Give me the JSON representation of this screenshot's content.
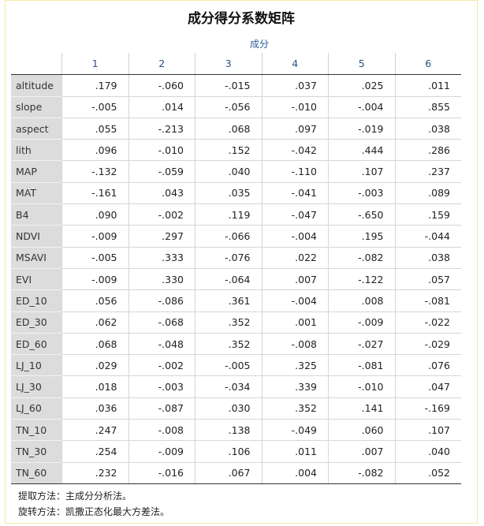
{
  "title": "成分得分系数矩阵",
  "group_header": "成分",
  "columns": [
    "1",
    "2",
    "3",
    "4",
    "5",
    "6"
  ],
  "rows": [
    {
      "label": "altitude",
      "values": [
        ".179",
        "-.060",
        "-.015",
        ".037",
        ".025",
        ".011"
      ]
    },
    {
      "label": "slope",
      "values": [
        "-.005",
        ".014",
        "-.056",
        "-.010",
        "-.004",
        ".855"
      ]
    },
    {
      "label": "aspect",
      "values": [
        ".055",
        "-.213",
        ".068",
        ".097",
        "-.019",
        ".038"
      ]
    },
    {
      "label": "lith",
      "values": [
        ".096",
        "-.010",
        ".152",
        "-.042",
        ".444",
        ".286"
      ]
    },
    {
      "label": "MAP",
      "values": [
        "-.132",
        "-.059",
        ".040",
        "-.110",
        ".107",
        ".237"
      ]
    },
    {
      "label": "MAT",
      "values": [
        "-.161",
        ".043",
        ".035",
        "-.041",
        "-.003",
        ".089"
      ]
    },
    {
      "label": "B4",
      "values": [
        ".090",
        "-.002",
        ".119",
        "-.047",
        "-.650",
        ".159"
      ]
    },
    {
      "label": "NDVI",
      "values": [
        "-.009",
        ".297",
        "-.066",
        "-.004",
        ".195",
        "-.044"
      ]
    },
    {
      "label": "MSAVI",
      "values": [
        "-.005",
        ".333",
        "-.076",
        ".022",
        "-.082",
        ".038"
      ]
    },
    {
      "label": "EVI",
      "values": [
        "-.009",
        ".330",
        "-.064",
        ".007",
        "-.122",
        ".057"
      ]
    },
    {
      "label": "ED_10",
      "values": [
        ".056",
        "-.086",
        ".361",
        "-.004",
        ".008",
        "-.081"
      ]
    },
    {
      "label": "ED_30",
      "values": [
        ".062",
        "-.068",
        ".352",
        ".001",
        "-.009",
        "-.022"
      ]
    },
    {
      "label": "ED_60",
      "values": [
        ".068",
        "-.048",
        ".352",
        "-.008",
        "-.027",
        "-.029"
      ]
    },
    {
      "label": "LJ_10",
      "values": [
        ".029",
        "-.002",
        "-.005",
        ".325",
        "-.081",
        ".076"
      ]
    },
    {
      "label": "LJ_30",
      "values": [
        ".018",
        "-.003",
        "-.034",
        ".339",
        "-.010",
        ".047"
      ]
    },
    {
      "label": "LJ_60",
      "values": [
        ".036",
        "-.087",
        ".030",
        ".352",
        ".141",
        "-.169"
      ]
    },
    {
      "label": "TN_10",
      "values": [
        ".247",
        "-.008",
        ".138",
        "-.049",
        ".060",
        ".107"
      ]
    },
    {
      "label": "TN_30",
      "values": [
        ".254",
        "-.009",
        ".106",
        ".011",
        ".007",
        ".040"
      ]
    },
    {
      "label": "TN_60",
      "values": [
        ".232",
        "-.016",
        ".067",
        ".004",
        "-.082",
        ".052"
      ]
    }
  ],
  "footer": {
    "line1": "提取方法：主成分分析法。",
    "line2": "旋转方法：凯撒正态化最大方差法。"
  }
}
